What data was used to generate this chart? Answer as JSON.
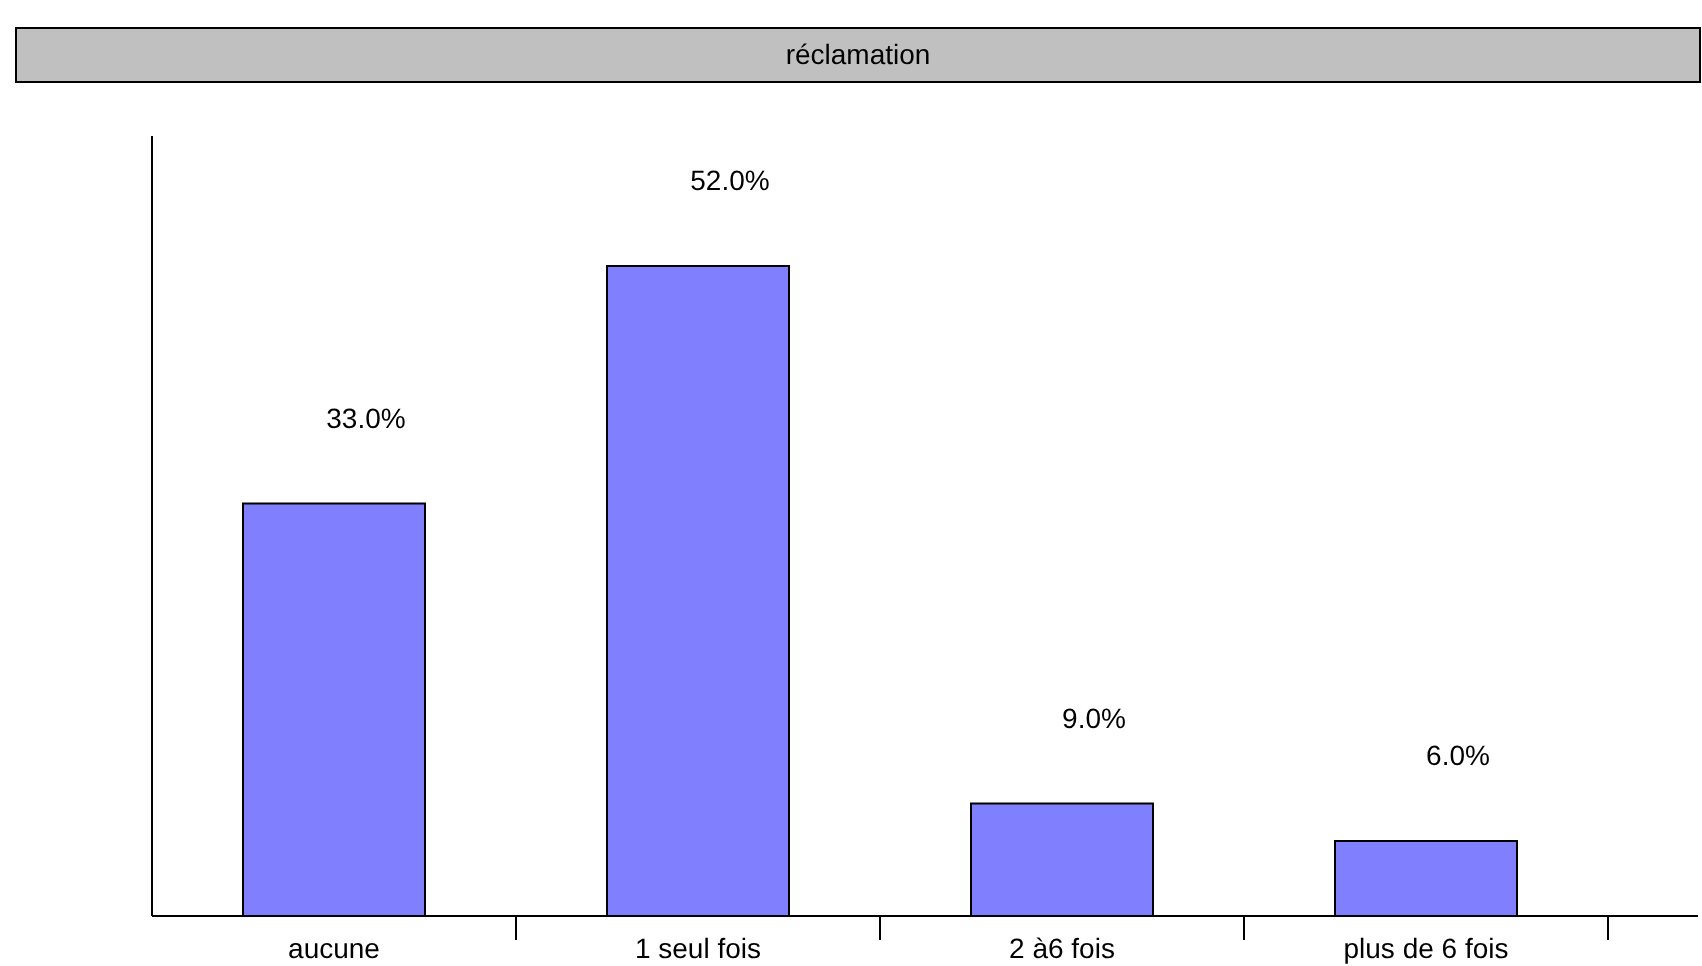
{
  "chart_data": {
    "type": "bar",
    "title": "réclamation",
    "categories": [
      "aucune",
      "1 seul fois",
      "2 à6 fois",
      "plus de 6 fois"
    ],
    "values": [
      33,
      52,
      9,
      6
    ],
    "color": "#8080ff",
    "value_labels": [
      "33.0%",
      "52.0%",
      "9.0%",
      "6.0%"
    ]
  }
}
